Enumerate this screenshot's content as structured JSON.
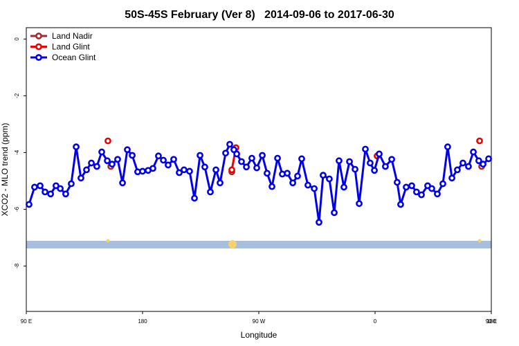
{
  "chart_data": {
    "type": "line",
    "title": "50S-45S February (Ver 8)   2014-09-06 to 2017-06-30",
    "x_label": "Longitude",
    "y_label": "XCO2 - MLO trend (ppm)",
    "xlim": [
      90,
      450
    ],
    "ylim": [
      -9.6,
      0.4
    ],
    "xticks": [
      {
        "value": 90,
        "label": "90 E"
      },
      {
        "value": 180,
        "label": "180"
      },
      {
        "value": 270,
        "label": "90 W"
      },
      {
        "value": 360,
        "label": "0"
      },
      {
        "value": 450,
        "label": "90 E"
      },
      {
        "value": 540,
        "label": "180"
      }
    ],
    "yticks": [
      0,
      -2,
      -4,
      -6,
      -8
    ],
    "legend": "top-left",
    "series": [
      {
        "name": "Land Nadir",
        "color": "#a52a2a",
        "x": [
          155.4,
          null,
          249.1,
          null,
          442.5
        ],
        "values": [
          -4.49,
          null,
          -4.68,
          null,
          -4.49
        ]
      },
      {
        "name": "Land Glint",
        "color": "#ee0000",
        "x": [
          153.2,
          null,
          249.1,
          252.3,
          null,
          361.6,
          null,
          440.9
        ],
        "values": [
          -3.59,
          null,
          -4.61,
          -3.83,
          null,
          -4.12,
          null,
          -3.59
        ]
      },
      {
        "name": "Ocean Glint",
        "color": "#0000ee",
        "x": [
          92.1,
          96.4,
          100.7,
          104.5,
          108.8,
          113.0,
          116.3,
          120.5,
          124.8,
          128.6,
          132.3,
          136.6,
          140.4,
          144.6,
          148.4,
          152.7,
          156.4,
          160.7,
          164.5,
          168.2,
          172.0,
          176.2,
          180.0,
          184.3,
          188.0,
          192.3,
          196.1,
          199.8,
          204.1,
          208.4,
          212.1,
          216.4,
          220.2,
          224.5,
          228.2,
          232.5,
          236.8,
          240.0,
          244.3,
          247.5,
          250.7,
          252.9,
          256.6,
          260.4,
          264.6,
          268.4,
          272.7,
          276.4,
          280.2,
          284.5,
          288.2,
          292.0,
          296.3,
          300.0,
          303.2,
          308.0,
          312.9,
          316.6,
          319.8,
          324.6,
          328.4,
          332.1,
          335.9,
          340.2,
          344.5,
          347.7,
          352.5,
          356.2,
          359.5,
          363.2,
          368.0,
          372.9,
          377.1,
          379.8,
          384.1,
          388.4,
          392.1,
          395.9,
          400.7,
          403.9,
          408.2,
          412.5,
          416.2,
          419.5,
          423.7,
          428.0,
          432.3,
          436.1,
          440.3,
          443.6,
          447.9
        ],
        "values": [
          -5.83,
          -5.22,
          -5.17,
          -5.39,
          -5.46,
          -5.17,
          -5.27,
          -5.46,
          -5.1,
          -3.8,
          -4.9,
          -4.61,
          -4.37,
          -4.49,
          -3.98,
          -4.29,
          -4.41,
          -4.24,
          -5.07,
          -3.9,
          -4.1,
          -4.68,
          -4.66,
          -4.63,
          -4.56,
          -4.12,
          -4.27,
          -4.44,
          -4.24,
          -4.71,
          -4.61,
          -4.66,
          -5.61,
          -4.1,
          -4.51,
          -5.39,
          -4.61,
          -5.07,
          -4.02,
          -3.71,
          -3.9,
          -4.05,
          -4.32,
          -4.51,
          -4.2,
          -4.54,
          -4.1,
          -4.73,
          -5.2,
          -4.2,
          -4.76,
          -4.73,
          -5.07,
          -4.83,
          -4.22,
          -5.15,
          -5.27,
          -6.46,
          -4.8,
          -4.93,
          -6.12,
          -4.29,
          -5.22,
          -4.32,
          -4.59,
          -5.8,
          -3.88,
          -4.37,
          -4.63,
          -4.05,
          -4.49,
          -4.24,
          -5.05,
          -5.83,
          -5.22,
          -5.17,
          -5.39,
          -5.49,
          -5.17,
          -5.27,
          -5.46,
          -5.1,
          -3.8,
          -4.9,
          -4.61,
          -4.37,
          -4.49,
          -3.98,
          -4.29,
          -4.41,
          -4.22
        ]
      }
    ]
  }
}
